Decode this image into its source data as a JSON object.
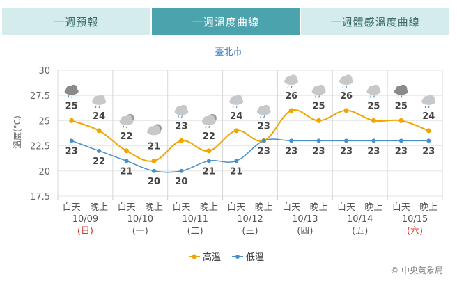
{
  "tabs": [
    {
      "label": "一週預報",
      "active": false
    },
    {
      "label": "一週溫度曲線",
      "active": true
    },
    {
      "label": "一週體感溫度曲線",
      "active": false
    }
  ],
  "copyright": "© 中央氣象局",
  "colors": {
    "high": "#f0a500",
    "low": "#4a90c8",
    "red_day": "#d03a2a",
    "tab_active": "#4aa3ad",
    "tab_inactive": "#d5ecec"
  },
  "chart_data": {
    "type": "line",
    "title": "臺北市",
    "ylabel": "溫度(°C)",
    "ylim": [
      17.5,
      30
    ],
    "yticks": [
      "30",
      "27.5",
      "25",
      "22.5",
      "20",
      "17.5"
    ],
    "x": [
      "白天",
      "晚上",
      "白天",
      "晚上",
      "白天",
      "晚上",
      "白天",
      "晚上",
      "白天",
      "晚上",
      "白天",
      "晚上",
      "白天",
      "晚上"
    ],
    "days": [
      {
        "date": "10/09",
        "weekday": "(日)",
        "weekend": true
      },
      {
        "date": "10/10",
        "weekday": "(一)",
        "weekend": false
      },
      {
        "date": "10/11",
        "weekday": "(二)",
        "weekend": false
      },
      {
        "date": "10/12",
        "weekday": "(三)",
        "weekend": false
      },
      {
        "date": "10/13",
        "weekday": "(四)",
        "weekend": false
      },
      {
        "date": "10/14",
        "weekday": "(五)",
        "weekend": false
      },
      {
        "date": "10/15",
        "weekday": "(六)",
        "weekend": true
      }
    ],
    "series": [
      {
        "name": "高溫",
        "values": [
          25,
          24,
          22,
          21,
          23,
          22,
          24,
          23,
          26,
          25,
          26,
          25,
          25,
          24
        ]
      },
      {
        "name": "低溫",
        "values": [
          23,
          22,
          21,
          20,
          20,
          21,
          21,
          23,
          23,
          23,
          23,
          23,
          23,
          23
        ]
      }
    ],
    "weather_icons": [
      "heavy-cloud-rain-icon",
      "cloudy-rain-icon",
      "partly-cloudy-rain-icon",
      "partly-cloudy-icon",
      "cloudy-rain-icon",
      "partly-cloudy-rain-icon",
      "cloudy-rain-icon",
      "cloudy-rain-icon",
      "cloudy-rain-icon",
      "cloudy-rain-icon",
      "cloudy-rain-icon",
      "cloudy-rain-icon",
      "heavy-cloud-rain-icon",
      "cloudy-rain-icon"
    ],
    "grid": true,
    "legend": "bottom-center"
  }
}
